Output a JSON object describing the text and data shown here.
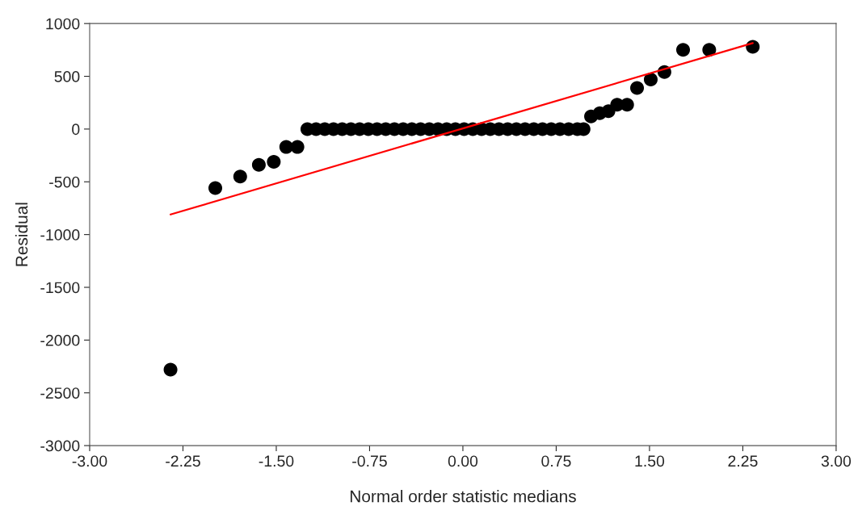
{
  "chart_data": {
    "type": "scatter",
    "xlabel": "Normal order statistic medians",
    "ylabel": "Residual",
    "xlim": [
      -3,
      3
    ],
    "ylim": [
      -3000,
      1000
    ],
    "xticks": [
      {
        "value": -3,
        "label": "-3.00"
      },
      {
        "value": -2.25,
        "label": "-2.25"
      },
      {
        "value": -1.5,
        "label": "-1.50"
      },
      {
        "value": -0.75,
        "label": "-0.75"
      },
      {
        "value": 0,
        "label": "0.00"
      },
      {
        "value": 0.75,
        "label": "0.75"
      },
      {
        "value": 1.5,
        "label": "1.50"
      },
      {
        "value": 2.25,
        "label": "2.25"
      },
      {
        "value": 3,
        "label": "3.00"
      }
    ],
    "yticks": [
      -3000,
      -2500,
      -2000,
      -1500,
      -1000,
      -500,
      0,
      500,
      1000
    ],
    "grid": false,
    "legend": false,
    "series": [
      {
        "color": "#000000",
        "marker": "circle",
        "x": [
          -2.35,
          -1.99,
          -1.79,
          -1.64,
          -1.52,
          -1.42,
          -1.33,
          -1.25,
          -1.18,
          -1.11,
          -1.04,
          -0.97,
          -0.9,
          -0.83,
          -0.76,
          -0.69,
          -0.62,
          -0.55,
          -0.48,
          -0.41,
          -0.34,
          -0.27,
          -0.2,
          -0.13,
          -0.06,
          0.01,
          0.08,
          0.15,
          0.22,
          0.29,
          0.36,
          0.43,
          0.5,
          0.57,
          0.64,
          0.71,
          0.78,
          0.85,
          0.92,
          0.97,
          1.03,
          1.1,
          1.17,
          1.24,
          1.32,
          1.4,
          1.51,
          1.62,
          1.77,
          1.98,
          2.33
        ],
        "values": [
          -2280,
          -560,
          -450,
          -340,
          -310,
          -170,
          -170,
          0,
          0,
          0,
          0,
          0,
          0,
          0,
          0,
          0,
          0,
          0,
          0,
          0,
          0,
          0,
          0,
          0,
          0,
          0,
          0,
          0,
          0,
          0,
          0,
          0,
          0,
          0,
          0,
          0,
          0,
          0,
          0,
          0,
          120,
          150,
          170,
          230,
          230,
          390,
          470,
          540,
          750,
          750,
          780
        ]
      },
      {
        "type": "line",
        "color": "#ff0000",
        "marker": "none",
        "line_style": "solid",
        "x": [
          -2.35,
          2.33
        ],
        "values": [
          -810,
          815
        ]
      }
    ]
  }
}
